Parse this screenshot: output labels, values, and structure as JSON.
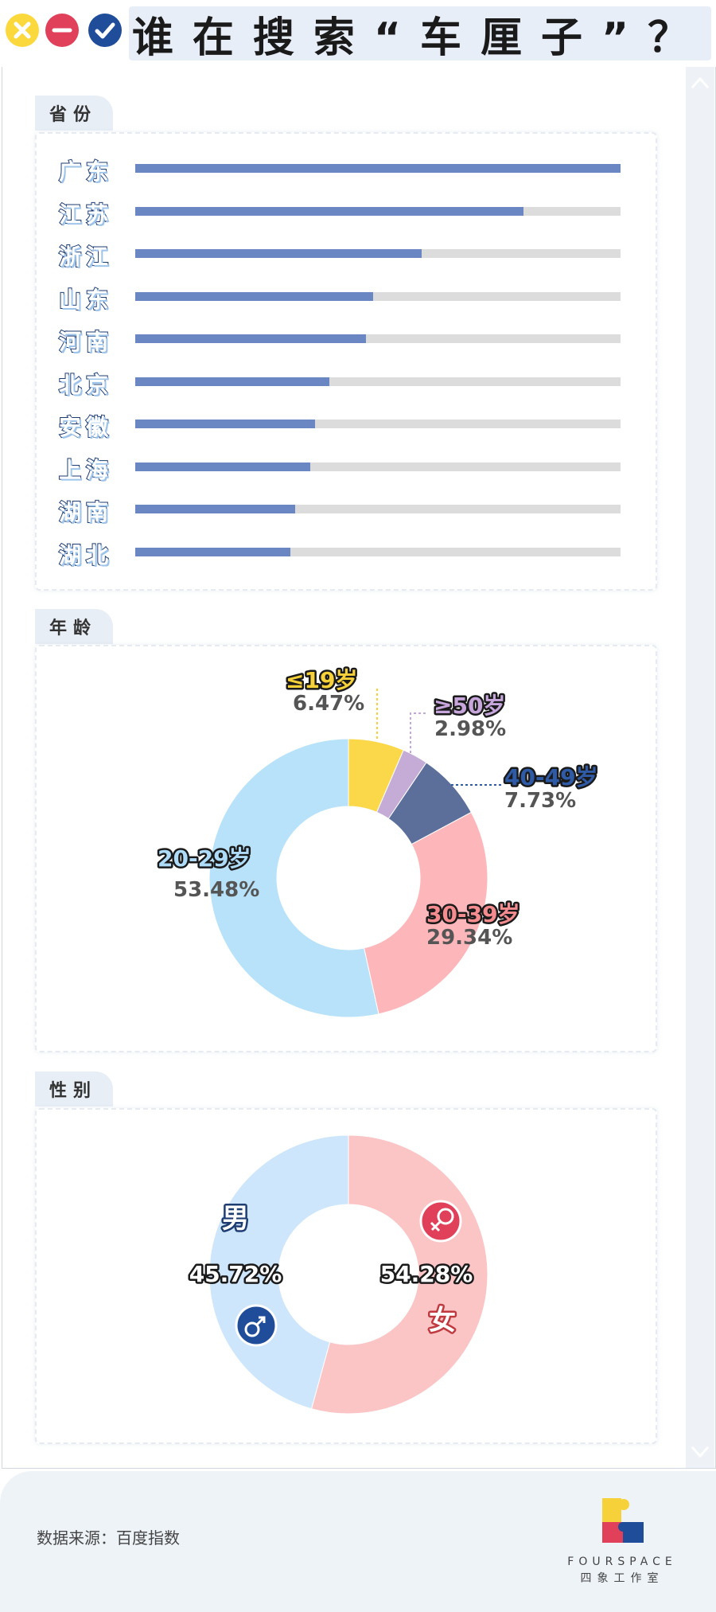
{
  "title": "谁在搜索“车厘子”？",
  "window_controls": {
    "close_icon": "close-icon",
    "minimize_icon": "minimize-icon",
    "confirm_icon": "check-icon"
  },
  "sections": {
    "province": {
      "label": "省份"
    },
    "age": {
      "label": "年龄"
    },
    "gender": {
      "label": "性别"
    }
  },
  "chart_data": [
    {
      "type": "bar",
      "orientation": "horizontal",
      "categories": [
        "广东",
        "江苏",
        "浙江",
        "山东",
        "河南",
        "北京",
        "安徽",
        "上海",
        "湖南",
        "湖北"
      ],
      "values": [
        1.0,
        0.8,
        0.59,
        0.49,
        0.475,
        0.4,
        0.37,
        0.36,
        0.33,
        0.32
      ],
      "xlim": [
        0,
        1
      ],
      "colors": {
        "fill": "#6a86c3",
        "track": "#dcdcdc"
      }
    },
    {
      "type": "pie",
      "donut": true,
      "slices": [
        {
          "label": "≤19岁",
          "value": 6.47,
          "pct": "6.47%",
          "color": "#fbd84a",
          "label_color": "#f7d13a"
        },
        {
          "label": "≥50岁",
          "value": 2.98,
          "pct": "2.98%",
          "color": "#c5acd6",
          "label_color": "#c7a6dc"
        },
        {
          "label": "40-49岁",
          "value": 7.73,
          "pct": "7.73%",
          "color": "#5b6f9a",
          "label_color": "#2f5aa5"
        },
        {
          "label": "30-39岁",
          "value": 29.34,
          "pct": "29.34%",
          "color": "#fdb7ba",
          "label_color": "#f58c8f"
        },
        {
          "label": "20-29岁",
          "value": 53.48,
          "pct": "53.48%",
          "color": "#b7e2fa",
          "label_color": "#aedbf7"
        }
      ]
    },
    {
      "type": "pie",
      "donut": true,
      "slices": [
        {
          "label": "女",
          "value": 54.28,
          "pct": "54.28%",
          "color": "#fbc4c5",
          "icon": "female-icon"
        },
        {
          "label": "男",
          "value": 45.72,
          "pct": "45.72%",
          "color": "#cde6fb",
          "icon": "male-icon"
        }
      ]
    }
  ],
  "footer": {
    "source": "数据来源：百度指数",
    "brand_name": "FOURSPACE",
    "brand_sub": "四象工作室"
  }
}
